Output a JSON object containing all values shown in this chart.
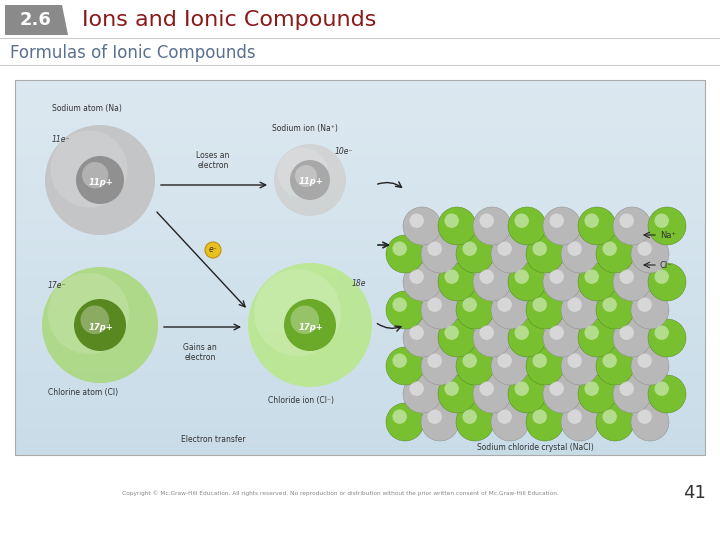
{
  "section_num": "2.6",
  "section_bg_color": "#8a8a8a",
  "section_num_color": "#ffffff",
  "title": "Ions and Ionic Compounds",
  "title_color": "#8B1A1A",
  "subtitle": "Formulas of Ionic Compounds",
  "subtitle_color": "#5a7090",
  "footer_text": "Copyright © Mc.Graw-Hill Education. All rights reserved. No reproduction or distribution without the prior written consent of Mc.Graw-Hill Education.",
  "footer_color": "#888888",
  "page_num": "41",
  "page_num_color": "#333333",
  "bg_color": "#ffffff",
  "header_line_color": "#cccccc",
  "diagram_bg_top": "#c8dce8",
  "diagram_bg_bottom": "#dce8f0",
  "na_outer_color": "#c0c0c0",
  "na_inner_color": "#909090",
  "cl_outer_color": "#a8d878",
  "cl_inner_color": "#5a8820",
  "na_ion_outer": "#d0d0d0",
  "na_ion_inner": "#a8a8a8",
  "cl_ion_outer": "#b8e888",
  "cl_ion_inner": "#6aaa28",
  "crystal_green": "#78c030",
  "crystal_gray": "#c0c0c0",
  "label_color": "#333333",
  "arrow_color": "#222222"
}
